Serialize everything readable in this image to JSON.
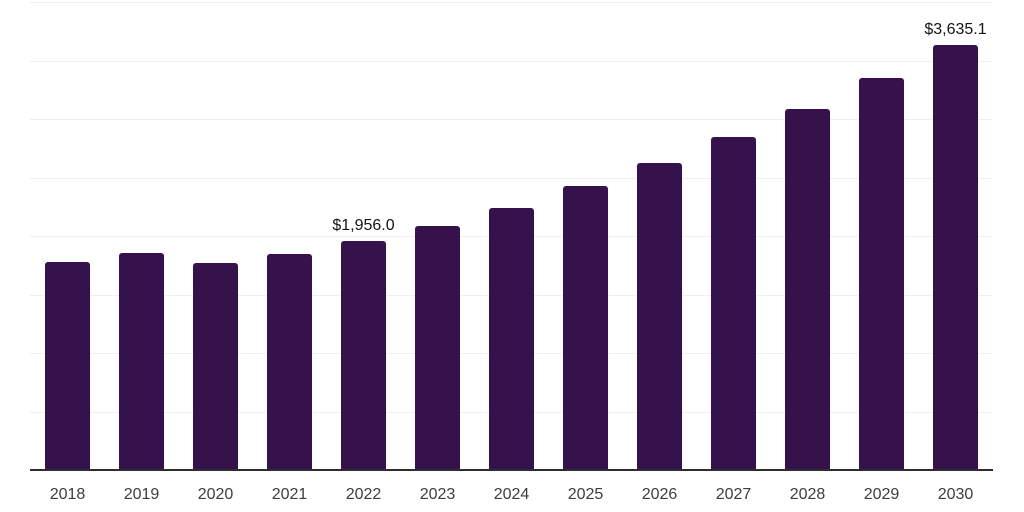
{
  "chart_data": {
    "type": "bar",
    "title": "",
    "xlabel": "",
    "ylabel": "",
    "categories": [
      "2018",
      "2019",
      "2020",
      "2021",
      "2022",
      "2023",
      "2024",
      "2025",
      "2026",
      "2027",
      "2028",
      "2029",
      "2030"
    ],
    "values": [
      1775,
      1855,
      1765,
      1850,
      1956.0,
      2085,
      2240,
      2425,
      2620,
      2845,
      3085,
      3350,
      3635.1
    ],
    "point_labels": [
      "",
      "",
      "",
      "",
      "$1,956.0",
      "",
      "",
      "",
      "",
      "",
      "",
      "",
      "$3,635.1"
    ],
    "ylim": [
      0,
      4000
    ],
    "gridline_step": 500,
    "grid": "horizontal-only",
    "legend_position": "none",
    "y_axis_tick_labels": "none",
    "colors": {
      "bar": "#35124B",
      "gridline": "#efefef",
      "axis_line": "#2e2e2e",
      "tick_label_text": "#3d3d3d",
      "data_label_text": "#141414",
      "background": "#ffffff"
    }
  }
}
